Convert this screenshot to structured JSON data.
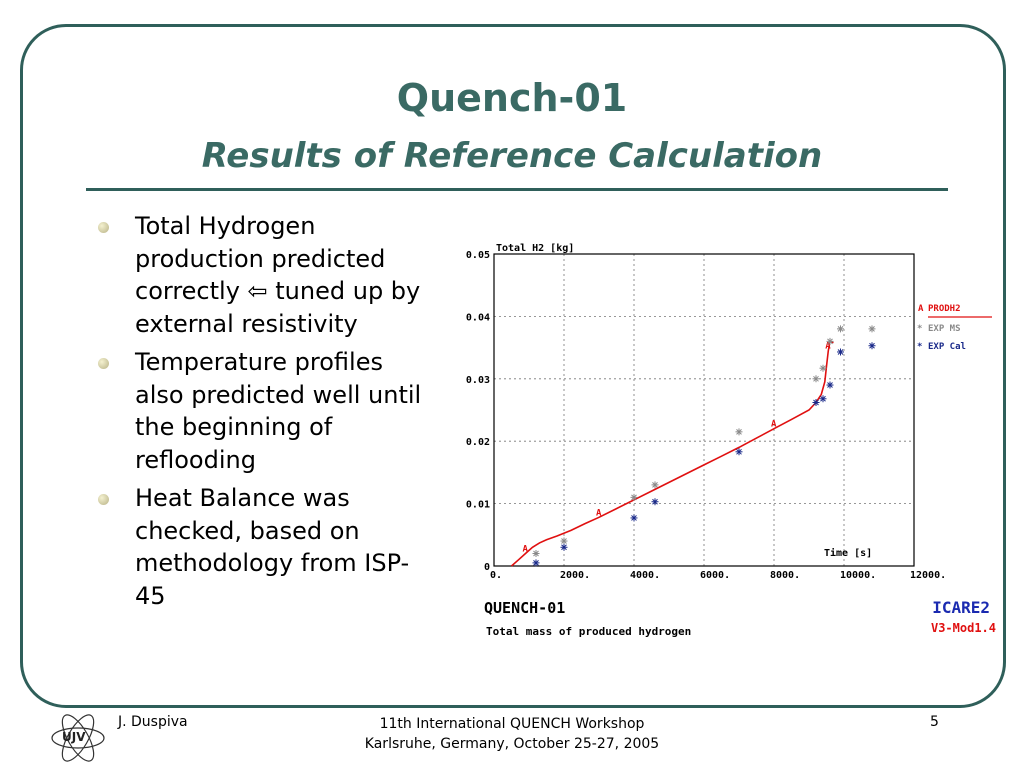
{
  "slide": {
    "title": "Quench-01",
    "subtitle": "Results of Reference Calculation",
    "bullets": [
      "Total Hydrogen production predicted correctly ⇦ tuned up by external resistivity",
      "Temperature profiles also predicted well until the beginning of reflooding",
      "Heat Balance was checked, based on methodology from ISP-45"
    ]
  },
  "footer": {
    "author": "J. Duspiva",
    "event_line1": "11th International QUENCH Workshop",
    "event_line2": "Karlsruhe, Germany, October 25-27, 2005",
    "page": "5",
    "logo_text": "UJV"
  },
  "chart_data": {
    "type": "line",
    "title": "Total H2 [kg]",
    "xlabel": "Time [s]",
    "ylabel": "",
    "xlim": [
      0,
      12000
    ],
    "ylim": [
      0,
      0.05
    ],
    "xticks": [
      0,
      2000,
      4000,
      6000,
      8000,
      10000,
      12000
    ],
    "xtick_labels": [
      "0.",
      "2000.",
      "4000.",
      "6000.",
      "8000.",
      "10000.",
      "12000."
    ],
    "yticks": [
      0,
      0.01,
      0.02,
      0.03,
      0.04,
      0.05
    ],
    "ytick_labels": [
      "0",
      "0.01",
      "0.02",
      "0.03",
      "0.04",
      "0.05"
    ],
    "grid": true,
    "legend_position": "right",
    "case_label": "QUENCH-01",
    "caption": "Total mass of produced hydrogen",
    "code_name": "ICARE2",
    "code_version": "V3-Mod1.4",
    "colors": {
      "prodh2": "#e01010",
      "exp_ms": "#8a8a8a",
      "exp_cal": "#1a2a8a",
      "brand": "#1a2ab0",
      "version": "#e01010"
    },
    "series": [
      {
        "name": "PRODH2",
        "kind": "line",
        "x": [
          500,
          700,
          900,
          1100,
          1300,
          1500,
          1800,
          2200,
          2600,
          3000,
          3500,
          4000,
          4500,
          5000,
          5500,
          6000,
          6500,
          7000,
          7500,
          8000,
          8500,
          9000,
          9200,
          9350,
          9450,
          9500,
          9550,
          9600,
          9700
        ],
        "y": [
          0.0,
          0.001,
          0.002,
          0.003,
          0.0037,
          0.0042,
          0.0048,
          0.0057,
          0.0068,
          0.0078,
          0.0092,
          0.0106,
          0.012,
          0.0134,
          0.0148,
          0.0162,
          0.0176,
          0.019,
          0.0205,
          0.022,
          0.0235,
          0.025,
          0.0262,
          0.0275,
          0.0295,
          0.032,
          0.0345,
          0.036,
          0.0358
        ]
      },
      {
        "name": "EXP MS",
        "kind": "marker",
        "x": [
          1200,
          2000,
          4000,
          4600,
          7000,
          9200,
          9400,
          9600,
          9900,
          10800
        ],
        "y": [
          0.002,
          0.004,
          0.011,
          0.013,
          0.0215,
          0.03,
          0.0317,
          0.036,
          0.038,
          0.038
        ]
      },
      {
        "name": "EXP Cal",
        "kind": "marker",
        "x": [
          1200,
          2000,
          4000,
          4600,
          7000,
          9200,
          9400,
          9600,
          9900,
          10800
        ],
        "y": [
          0.0005,
          0.003,
          0.0077,
          0.0103,
          0.0183,
          0.0262,
          0.0268,
          0.029,
          0.0343,
          0.0353
        ]
      }
    ]
  }
}
